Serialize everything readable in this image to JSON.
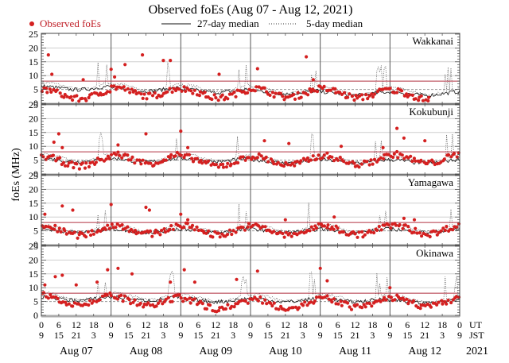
{
  "chart_data": {
    "type": "scatter",
    "title": "Observed foEs (Aug 07 - Aug 12, 2021)",
    "ylabel": "foEs (MHz)",
    "xlabel": "",
    "ylim": [
      0,
      25
    ],
    "yticks": [
      "0",
      "5",
      "10",
      "15",
      "20",
      "25"
    ],
    "legend": {
      "placement": "top",
      "entries": [
        {
          "label": "Observed foEs",
          "style": "red-dot",
          "color": "#d42020"
        },
        {
          "label": "27-day median",
          "style": "solid-line",
          "color": "#111111"
        },
        {
          "label": "5-day median",
          "style": "dotted-line",
          "color": "#333333"
        }
      ]
    },
    "reference_lines": {
      "red_threshold_mhz": 8,
      "gray_dashed_mhz": 5
    },
    "x_axis": {
      "ut_ticks": [
        "0",
        "6",
        "12",
        "18",
        "0",
        "6",
        "12",
        "18",
        "0",
        "6",
        "12",
        "18",
        "0",
        "6",
        "12",
        "18",
        "0",
        "6",
        "12",
        "18",
        "0",
        "6",
        "12",
        "18",
        "0"
      ],
      "jst_ticks": [
        "9",
        "15",
        "21",
        "3",
        "9",
        "15",
        "21",
        "3",
        "9",
        "15",
        "21",
        "3",
        "9",
        "15",
        "21",
        "3",
        "9",
        "15",
        "21",
        "3",
        "9",
        "15",
        "21",
        "3",
        "9"
      ],
      "ut_label": "UT",
      "jst_label": "JST",
      "days": [
        "Aug 07",
        "Aug 08",
        "Aug 09",
        "Aug 10",
        "Aug 11",
        "Aug 12"
      ],
      "year": "2021"
    },
    "panels": [
      {
        "station": "Wakkanai",
        "median27_daily": [
          5.5,
          5,
          4.5,
          4,
          3.5,
          3.5
        ],
        "observed_daily_mean": [
          3.2,
          4.2,
          3.5,
          3.8,
          3.6,
          3.0
        ],
        "observed_peaks": [
          [
            0.1,
            17.5
          ],
          [
            0.15,
            10.5
          ],
          [
            0.6,
            8.5
          ],
          [
            1.0,
            12.3
          ],
          [
            1.05,
            9.5
          ],
          [
            1.2,
            14
          ],
          [
            1.45,
            17.5
          ],
          [
            1.75,
            15.5
          ],
          [
            1.85,
            15.5
          ],
          [
            2.55,
            10.5
          ],
          [
            3.1,
            12.5
          ],
          [
            3.8,
            16.8
          ],
          [
            3.9,
            8.5
          ]
        ]
      },
      {
        "station": "Kokubunji",
        "median27_daily": [
          5,
          5,
          5,
          4.5,
          4.5,
          4.5
        ],
        "observed_daily_mean": [
          4.5,
          5.5,
          4.5,
          4.8,
          5.0,
          5.5
        ],
        "observed_peaks": [
          [
            0.18,
            11.5
          ],
          [
            0.25,
            14.5
          ],
          [
            0.3,
            9.5
          ],
          [
            1.1,
            10.5
          ],
          [
            1.5,
            14.5
          ],
          [
            2.0,
            15.5
          ],
          [
            2.1,
            9.5
          ],
          [
            3.2,
            12
          ],
          [
            3.55,
            11
          ],
          [
            4.3,
            10
          ],
          [
            4.9,
            9.5
          ],
          [
            5.1,
            16.5
          ],
          [
            5.2,
            13
          ],
          [
            5.5,
            12
          ]
        ]
      },
      {
        "station": "Yamagawa",
        "median27_daily": [
          5,
          5,
          5,
          5,
          5,
          5
        ],
        "observed_daily_mean": [
          5.0,
          5.5,
          5.2,
          5.0,
          5.2,
          5.5
        ],
        "observed_peaks": [
          [
            0.05,
            11
          ],
          [
            0.3,
            14
          ],
          [
            0.45,
            12.5
          ],
          [
            1.0,
            14.5
          ],
          [
            1.5,
            13.5
          ],
          [
            1.55,
            12.5
          ],
          [
            2.0,
            11
          ],
          [
            2.1,
            9
          ],
          [
            3.5,
            9
          ],
          [
            4.2,
            10
          ],
          [
            5.2,
            9.5
          ],
          [
            5.35,
            9
          ]
        ]
      },
      {
        "station": "Okinawa",
        "median27_daily": [
          6,
          6,
          5.5,
          5.5,
          5.5,
          5
        ],
        "observed_daily_mean": [
          5.5,
          5.0,
          4.0,
          4.2,
          4.5,
          4.8
        ],
        "observed_peaks": [
          [
            0.05,
            11
          ],
          [
            0.2,
            14
          ],
          [
            0.3,
            14.5
          ],
          [
            0.5,
            11
          ],
          [
            0.8,
            12
          ],
          [
            0.95,
            16.5
          ],
          [
            1.1,
            17
          ],
          [
            1.3,
            15
          ],
          [
            1.85,
            12
          ],
          [
            2.05,
            16.5
          ],
          [
            2.2,
            12
          ],
          [
            2.8,
            13
          ],
          [
            3.1,
            16
          ],
          [
            4.0,
            17
          ],
          [
            4.1,
            12.5
          ],
          [
            5.0,
            10
          ]
        ]
      }
    ]
  }
}
